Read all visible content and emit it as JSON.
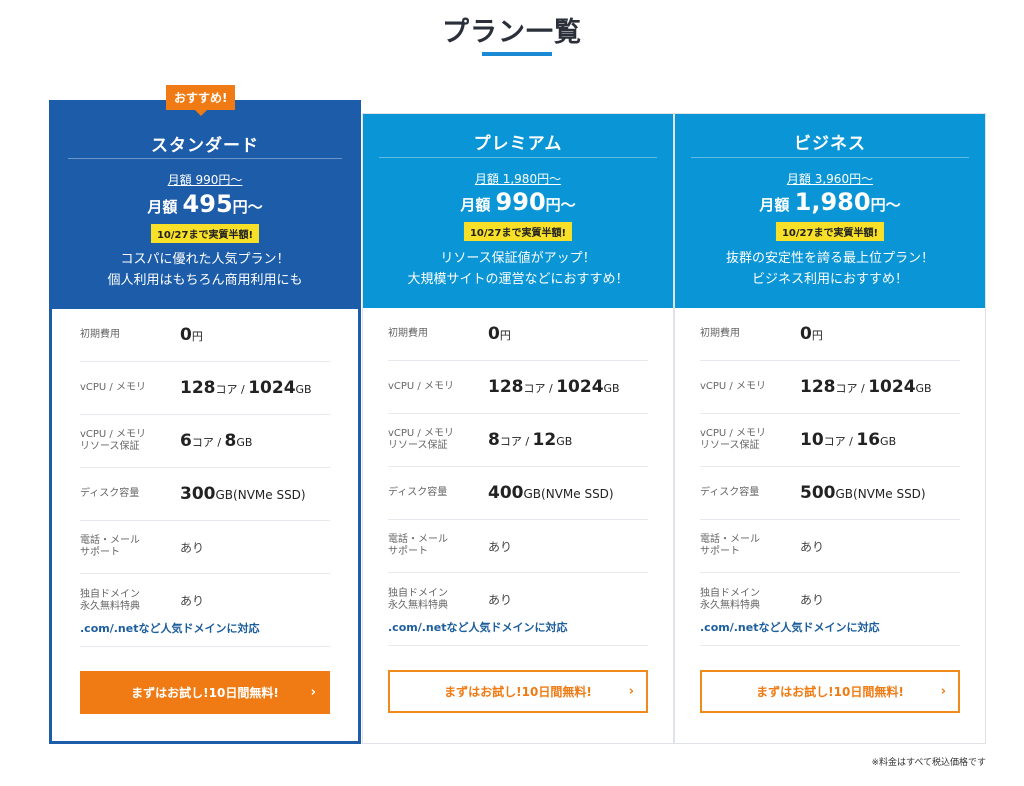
{
  "page": {
    "title": "プラン一覧",
    "footnote": "※料金はすべて税込価格です"
  },
  "plans": [
    {
      "name": "スタンダード",
      "badge": "おすすめ!",
      "old_price": "月額 990円～",
      "price_prefix": "月額 ",
      "price_amount": "495",
      "price_suffix": "円～",
      "promo": "10/27まで実質半額!",
      "desc_line1": "コスパに優れた人気プラン！",
      "desc_line2": "個人利用はもちろん商用利用にも",
      "initial_fee": "0",
      "initial_fee_unit": "円",
      "vcpu": "128",
      "vcpu_unit": "コア / ",
      "memory": "1024",
      "memory_unit": "GB",
      "guaranteed_cpu": "6",
      "guaranteed_cpu_unit": "コア / ",
      "guaranteed_mem": "8",
      "guaranteed_mem_unit": "GB",
      "disk": "300",
      "disk_unit": "GB(NVMe SSD)",
      "support": "あり",
      "domain_perk": "あり",
      "cta": "まずはお試し!10日間無料!"
    },
    {
      "name": "プレミアム",
      "old_price": "月額 1,980円～",
      "price_prefix": "月額 ",
      "price_amount": "990",
      "price_suffix": "円～",
      "promo": "10/27まで実質半額!",
      "desc_line1": "リソース保証値がアップ！",
      "desc_line2": "大規模サイトの運営などにおすすめ！",
      "initial_fee": "0",
      "initial_fee_unit": "円",
      "vcpu": "128",
      "vcpu_unit": "コア / ",
      "memory": "1024",
      "memory_unit": "GB",
      "guaranteed_cpu": "8",
      "guaranteed_cpu_unit": "コア / ",
      "guaranteed_mem": "12",
      "guaranteed_mem_unit": "GB",
      "disk": "400",
      "disk_unit": "GB(NVMe SSD)",
      "support": "あり",
      "domain_perk": "あり",
      "cta": "まずはお試し!10日間無料!"
    },
    {
      "name": "ビジネス",
      "old_price": "月額 3,960円～",
      "price_prefix": "月額 ",
      "price_amount": "1,980",
      "price_suffix": "円～",
      "promo": "10/27まで実質半額!",
      "desc_line1": "抜群の安定性を誇る最上位プラン！",
      "desc_line2": "ビジネス利用におすすめ！",
      "initial_fee": "0",
      "initial_fee_unit": "円",
      "vcpu": "128",
      "vcpu_unit": "コア / ",
      "memory": "1024",
      "memory_unit": "GB",
      "guaranteed_cpu": "10",
      "guaranteed_cpu_unit": "コア / ",
      "guaranteed_mem": "16",
      "guaranteed_mem_unit": "GB",
      "disk": "500",
      "disk_unit": "GB(NVMe SSD)",
      "support": "あり",
      "domain_perk": "あり",
      "cta": "まずはお試し!10日間無料!"
    }
  ],
  "labels": {
    "initial_fee": "初期費用",
    "vcpu_memory": "vCPU / メモリ",
    "guaranteed_line1": "vCPU / メモリ",
    "guaranteed_line2": "リソース保証",
    "disk": "ディスク容量",
    "support_line1": "電話・メール",
    "support_line2": "サポート",
    "domain_line1": "独自ドメイン",
    "domain_line2": "永久無料特典",
    "domain_note": ".com/.netなど人気ドメインに対応"
  },
  "icons": {
    "cta_chevron": "›"
  },
  "colors": {
    "featured_blue": "#1c5ca8",
    "header_blue": "#0a96d6",
    "accent_orange": "#f07b14",
    "promo_yellow": "#f7e027"
  }
}
